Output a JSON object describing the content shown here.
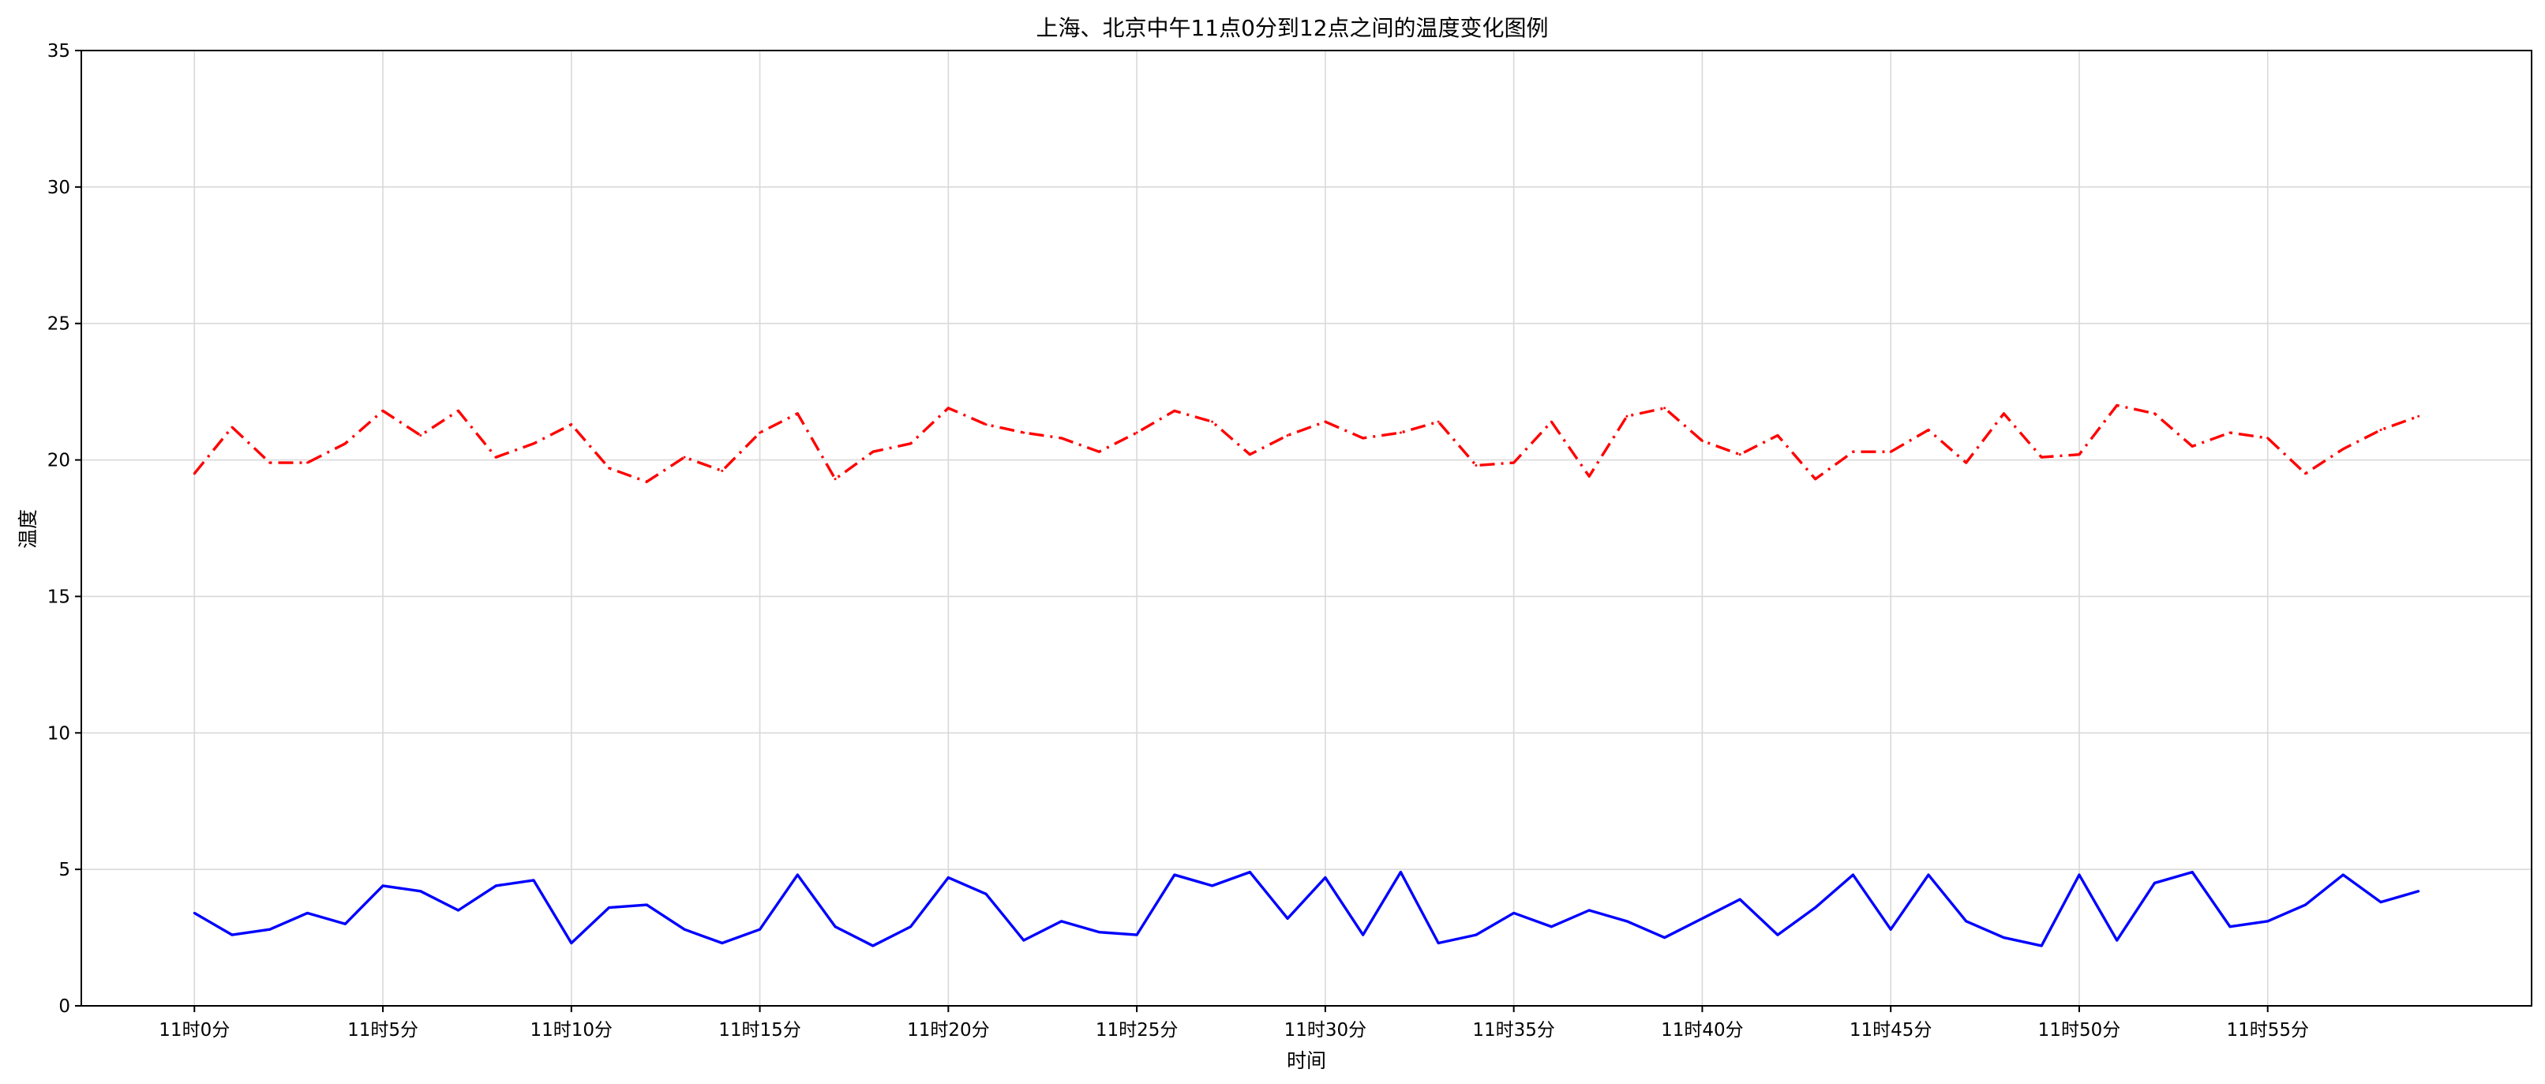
{
  "chart_data": {
    "type": "line",
    "title": "上海、北京中午11点0分到12点之间的温度变化图例",
    "xlabel": "时间",
    "ylabel": "温度",
    "ylim": [
      0,
      35
    ],
    "yticks": [
      0,
      5,
      10,
      15,
      20,
      25,
      30,
      35
    ],
    "xlim": [
      -3,
      62
    ],
    "xticks": [
      0,
      5,
      10,
      15,
      20,
      25,
      30,
      35,
      40,
      45,
      50,
      55
    ],
    "xtick_labels": [
      "11时0分",
      "11时5分",
      "11时10分",
      "11时15分",
      "11时20分",
      "11时25分",
      "11时30分",
      "11时35分",
      "11时40分",
      "11时45分",
      "11时50分",
      "11时55分"
    ],
    "grid": true,
    "x": [
      0,
      1,
      2,
      3,
      4,
      5,
      6,
      7,
      8,
      9,
      10,
      11,
      12,
      13,
      14,
      15,
      16,
      17,
      18,
      19,
      20,
      21,
      22,
      23,
      24,
      25,
      26,
      27,
      28,
      29,
      30,
      31,
      32,
      33,
      34,
      35,
      36,
      37,
      38,
      39,
      40,
      41,
      42,
      43,
      44,
      45,
      46,
      47,
      48,
      49,
      50,
      51,
      52,
      53,
      54,
      55,
      56,
      57,
      58,
      59
    ],
    "series": [
      {
        "color": "#ff0000",
        "linestyle": "dashdot",
        "values": [
          19.5,
          21.2,
          19.9,
          19.9,
          20.6,
          21.8,
          20.9,
          21.8,
          20.1,
          20.6,
          21.3,
          19.7,
          19.2,
          20.1,
          19.6,
          21.0,
          21.7,
          19.3,
          20.3,
          20.6,
          21.9,
          21.3,
          21.0,
          20.8,
          20.3,
          21.0,
          21.8,
          21.4,
          20.2,
          20.9,
          21.4,
          20.8,
          21.0,
          21.4,
          19.8,
          19.9,
          21.4,
          19.4,
          21.6,
          21.9,
          20.7,
          20.2,
          20.9,
          19.3,
          20.3,
          20.3,
          21.1,
          19.9,
          21.7,
          20.1,
          20.2,
          22.0,
          21.7,
          20.5,
          21.0,
          20.8,
          19.5,
          20.4,
          21.1,
          21.6
        ]
      },
      {
        "color": "#0000ff",
        "linestyle": "solid",
        "values": [
          3.4,
          2.6,
          2.8,
          3.4,
          3.0,
          4.4,
          4.2,
          3.5,
          4.4,
          4.6,
          2.3,
          3.6,
          3.7,
          2.8,
          2.3,
          2.8,
          4.8,
          2.9,
          2.2,
          2.9,
          4.7,
          4.1,
          2.4,
          3.1,
          2.7,
          2.6,
          4.8,
          4.4,
          4.9,
          3.2,
          4.7,
          2.6,
          4.9,
          2.3,
          2.6,
          3.4,
          2.9,
          3.5,
          3.1,
          2.5,
          3.2,
          3.9,
          2.6,
          3.6,
          4.8,
          2.8,
          4.8,
          3.1,
          2.5,
          2.2,
          4.8,
          2.4,
          4.5,
          4.9,
          2.9,
          3.1,
          3.7,
          4.8,
          3.8,
          4.2
        ]
      }
    ]
  }
}
